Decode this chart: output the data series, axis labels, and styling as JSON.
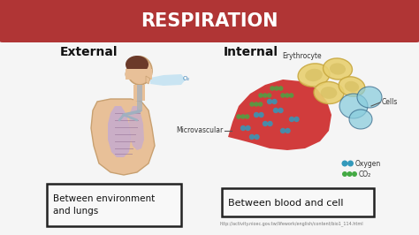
{
  "title": "RESPIRATION",
  "title_bg_color": "#b03535",
  "title_text_color": "#ffffff",
  "bg_color": "#f5f5f5",
  "outer_bg_color": "#606060",
  "left_label": "External",
  "right_label": "Internal",
  "left_box_text": "Between environment\nand lungs",
  "right_box_text": "Between blood and cell",
  "url_text": "http://activity.nioec.gov.tw/lifework/english/content/bio1_114.html",
  "legend_oxygen": "Oxygen",
  "legend_co2": "CO₂",
  "oxygen_color": "#3399bb",
  "co2_color": "#44aa44",
  "erythrocyte_label": "Erythrocyte",
  "cells_label": "Cells",
  "microvascular_label": "Microvascular",
  "skin_color": "#e8c098",
  "skin_edge": "#c8a070",
  "lung_color": "#c0a8d8",
  "rbc_color": "#e8d070",
  "rbc_edge": "#c8a840",
  "blood_color": "#cc2222",
  "cell_color": "#88ccdd",
  "cell_edge": "#336688"
}
